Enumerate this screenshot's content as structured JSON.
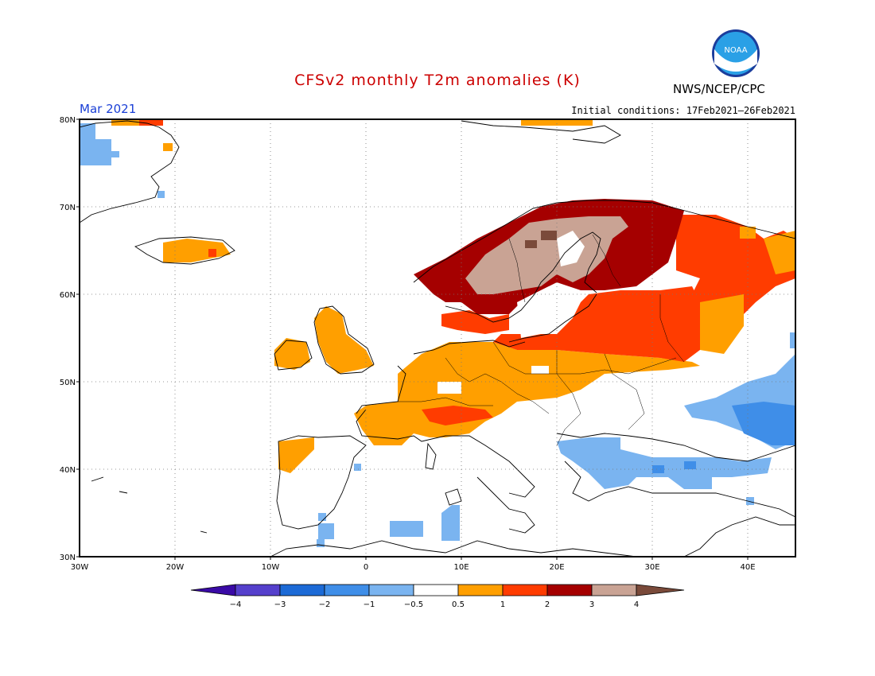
{
  "title": "CFSv2 monthly T2m anomalies (K)",
  "agency": "NWS/NCEP/CPC",
  "logo": {
    "name": "noaa-logo",
    "text": "NOAA"
  },
  "month_label": "Mar 2021",
  "initial_conditions": "Initial conditions: 17Feb2021–26Feb2021",
  "map": {
    "region": "Europe",
    "lon_range": [
      -30,
      45
    ],
    "lat_range": [
      30,
      80
    ],
    "lat_ticks": [
      "30N",
      "40N",
      "50N",
      "60N",
      "70N",
      "80N"
    ],
    "lon_ticks": [
      "30W",
      "20W",
      "10W",
      "0",
      "10E",
      "20E",
      "30E",
      "40E"
    ],
    "grid": "dotted"
  },
  "colorbar": {
    "tick_labels": [
      "−4",
      "−3",
      "−2",
      "−1",
      "−0.5",
      "0.5",
      "1",
      "2",
      "3",
      "4"
    ],
    "colors": [
      "#3a0aa6",
      "#5540cc",
      "#1c6ad6",
      "#3f8ee8",
      "#7ab4f0",
      "#ffffff",
      "#ff9f00",
      "#ff3c00",
      "#a50000",
      "#c9a394",
      "#7a4a3a"
    ]
  },
  "anomaly_regions": [
    {
      "area": "Fennoscandia interior",
      "level": "3 to 4"
    },
    {
      "area": "Norway coast",
      "level": "2 to 3"
    },
    {
      "area": "Finland / NW Russia",
      "level": "2 to 3"
    },
    {
      "area": "Baltics / Western Russia",
      "level": "1 to 2"
    },
    {
      "area": "Central Europe / British Isles / France",
      "level": "0.5 to 1"
    },
    {
      "area": "Iceland",
      "level": "0.5 to 1"
    },
    {
      "area": "Greece / Turkey / Black Sea",
      "level": "-1 to -0.5"
    },
    {
      "area": "Southern Russia / Ukraine",
      "level": "-2 to -1"
    },
    {
      "area": "Greenland",
      "level": "-1 to -0.5"
    }
  ]
}
